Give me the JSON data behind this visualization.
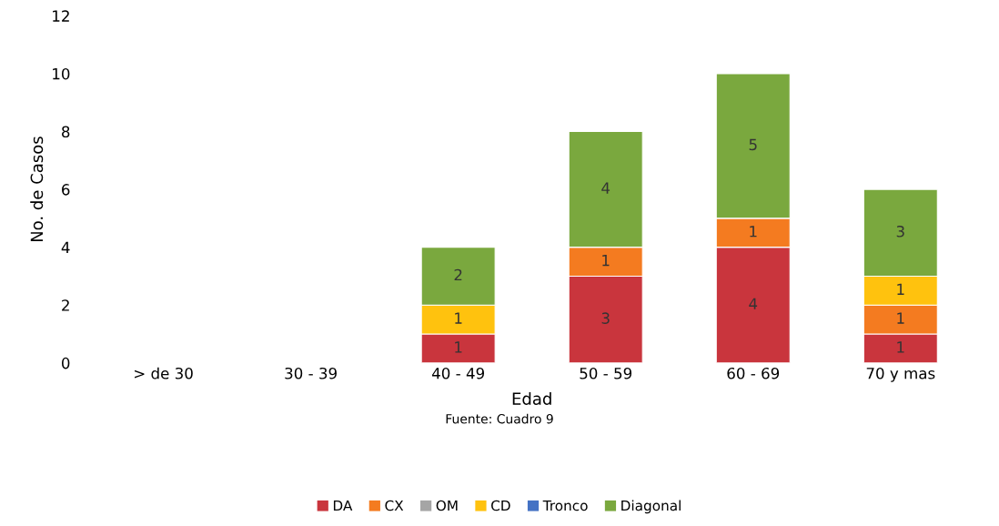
{
  "chart_data": {
    "type": "bar",
    "stacked": true,
    "xlabel": "Edad",
    "ylabel": "No. de Casos",
    "annotations": [
      "Fuente: Cuadro 9"
    ],
    "categories": [
      "> de 30",
      "30 - 39",
      "40 - 49",
      "50 - 59",
      "60 - 69",
      "70 y mas"
    ],
    "series": [
      {
        "name": "DA",
        "color": "#c9353d",
        "values": [
          0,
          0,
          1,
          3,
          4,
          1
        ],
        "value_labels": [
          null,
          null,
          "1",
          "3",
          "4",
          "1"
        ]
      },
      {
        "name": "CX",
        "color": "#f47b20",
        "values": [
          0,
          0,
          0,
          1,
          1,
          1
        ],
        "value_labels": [
          null,
          null,
          null,
          "1",
          "1",
          "1"
        ]
      },
      {
        "name": "OM",
        "color": "#a5a5a5",
        "values": [
          0,
          0,
          0,
          0,
          0,
          0
        ],
        "value_labels": [
          null,
          null,
          null,
          null,
          null,
          null
        ]
      },
      {
        "name": "CD",
        "color": "#ffc20e",
        "values": [
          0,
          0,
          1,
          0,
          0,
          1
        ],
        "value_labels": [
          null,
          null,
          "1",
          null,
          null,
          "1"
        ]
      },
      {
        "name": "Tronco",
        "color": "#4472c4",
        "values": [
          0,
          0,
          0,
          0,
          0,
          0
        ],
        "value_labels": [
          null,
          null,
          null,
          null,
          null,
          null
        ]
      },
      {
        "name": "Diagonal",
        "color": "#7aa83e",
        "values": [
          0,
          0,
          2,
          4,
          5,
          3
        ],
        "value_labels": [
          null,
          null,
          "2",
          "4",
          "5",
          "3"
        ]
      }
    ],
    "ylim": [
      0,
      12
    ],
    "yticks": [
      0,
      2,
      4,
      6,
      8,
      10,
      12
    ],
    "grid": false,
    "legend": "bottom"
  }
}
